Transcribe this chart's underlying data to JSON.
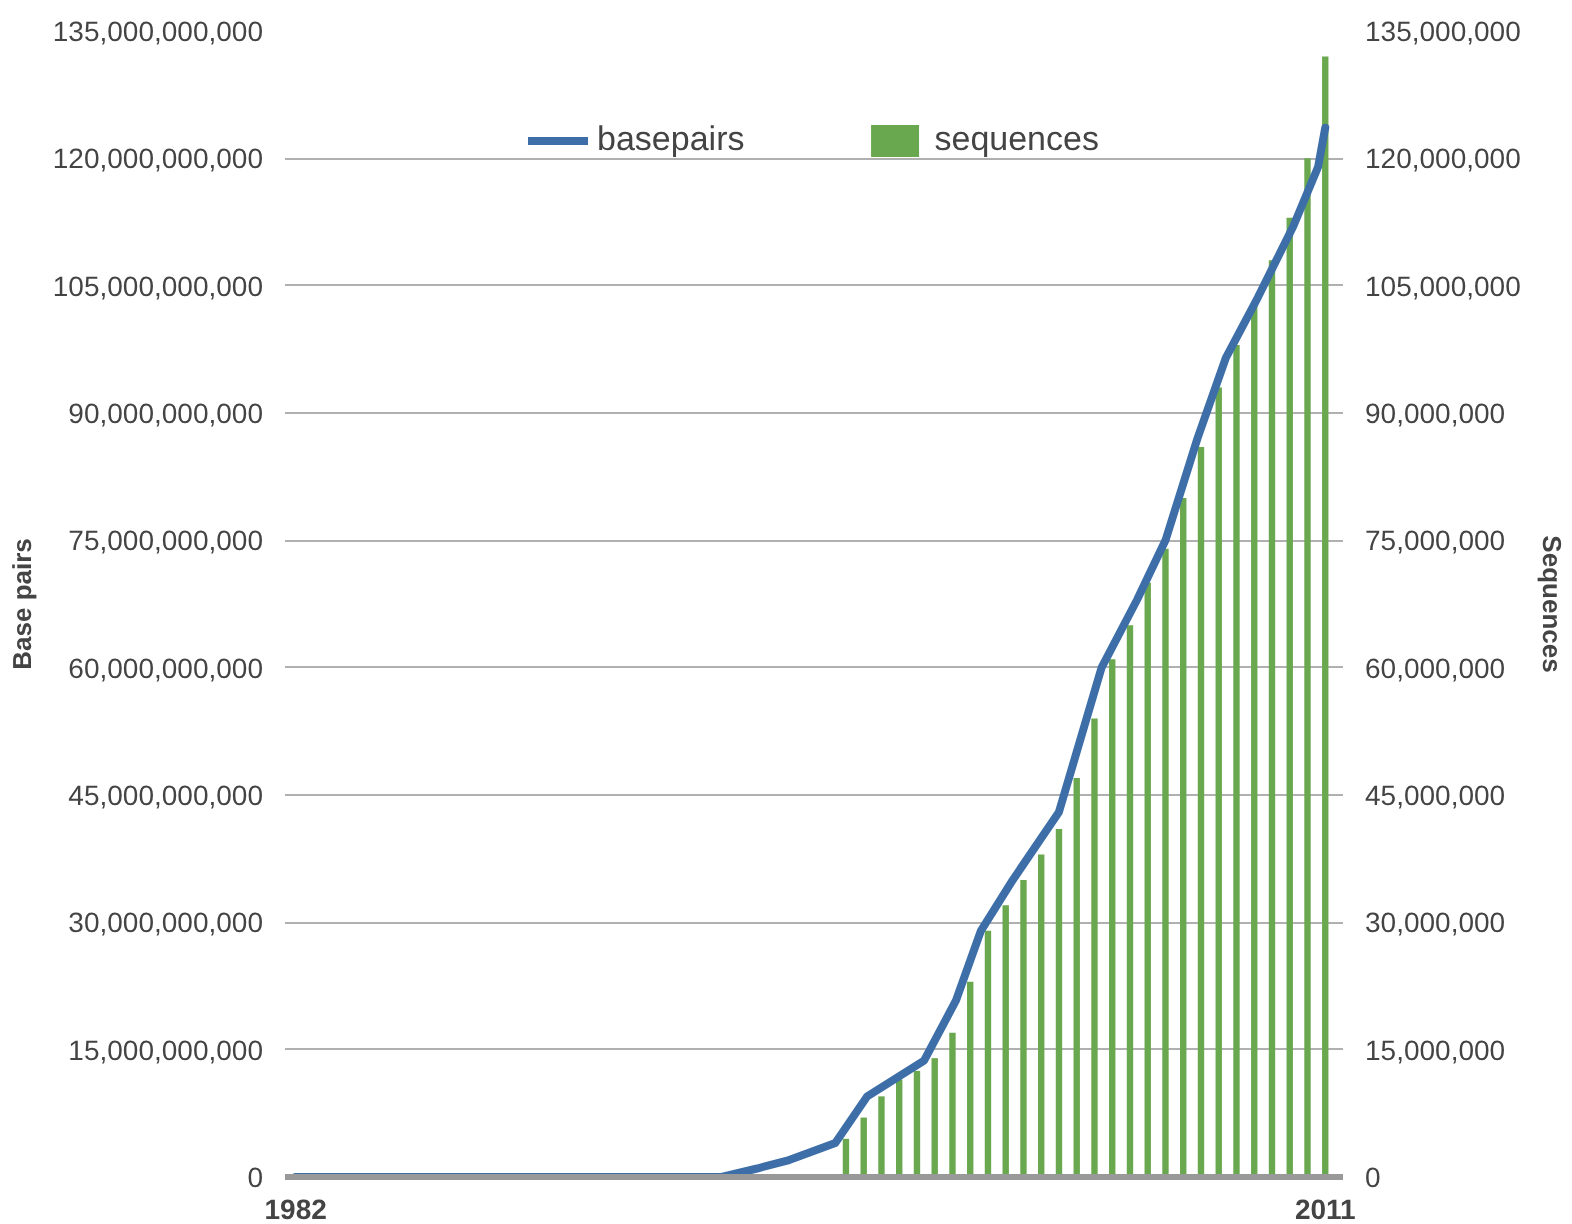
{
  "chart_data": {
    "type": "bar",
    "xlim": [
      1981.7,
      2011.5
    ],
    "xticks": [
      1982,
      2011
    ],
    "ylabel": "Base pairs",
    "y2label": "Sequences",
    "ylim": [
      0,
      135000000000
    ],
    "yticks": [
      {
        "value": 0,
        "label": "0"
      },
      {
        "value": 15000000000,
        "label": "15,000,000,000"
      },
      {
        "value": 30000000000,
        "label": "30,000,000,000"
      },
      {
        "value": 45000000000,
        "label": "45,000,000,000"
      },
      {
        "value": 60000000000,
        "label": "60,000,000,000"
      },
      {
        "value": 75000000000,
        "label": "75,000,000,000"
      },
      {
        "value": 90000000000,
        "label": "90,000,000,000"
      },
      {
        "value": 105000000000,
        "label": "105,000,000,000"
      },
      {
        "value": 120000000000,
        "label": "120,000,000,000"
      },
      {
        "value": 135000000000,
        "label": "135,000,000,000"
      }
    ],
    "y2lim": [
      0,
      135000000
    ],
    "y2ticks": [
      {
        "value": 0,
        "label": "0"
      },
      {
        "value": 15000000,
        "label": "15,000,000"
      },
      {
        "value": 30000000,
        "label": "30,000,000"
      },
      {
        "value": 45000000,
        "label": "45,000,000"
      },
      {
        "value": 60000000,
        "label": "60,000,000"
      },
      {
        "value": 75000000,
        "label": "75,000,000"
      },
      {
        "value": 90000000,
        "label": "90,000,000"
      },
      {
        "value": 105000000,
        "label": "105,000,000"
      },
      {
        "value": 120000000,
        "label": "120,000,000"
      },
      {
        "value": 135000000,
        "label": "135,000,000"
      }
    ],
    "grid": "y",
    "legend": "top",
    "series": [
      {
        "name": "basepairs",
        "type": "line",
        "color": "#3d6ea8",
        "x": [
          1982,
          1986,
          1990,
          1992,
          1994,
          1995,
          1995.9,
          1997.2,
          1998.1,
          1999.7,
          2000.6,
          2001.3,
          2002.2,
          2003.5,
          2004.7,
          2005.7,
          2006.5,
          2007.4,
          2008.2,
          2009.1,
          2010.1,
          2010.8,
          2011
        ],
        "values": [
          0,
          0,
          0,
          0,
          0,
          1000000000,
          2000000000,
          4000000000,
          9500000000,
          13700000000,
          20800000000,
          29000000000,
          35000000000,
          43000000000,
          60000000000,
          68000000000,
          75000000000,
          87000000000,
          96500000000,
          103600000000,
          112000000000,
          119000000000,
          123600000000
        ]
      },
      {
        "name": "sequences",
        "axis": "y2",
        "color": "#6aa84f",
        "x": [
          1997.5,
          1998,
          1998.5,
          1999,
          1999.5,
          2000,
          2000.5,
          2001,
          2001.5,
          2002,
          2002.5,
          2003,
          2003.5,
          2004,
          2004.5,
          2005,
          2005.5,
          2006,
          2006.5,
          2007,
          2007.5,
          2008,
          2008.5,
          2009,
          2009.5,
          2010,
          2010.5,
          2011
        ],
        "values": [
          4500000,
          7000000,
          9500000,
          11500000,
          12500000,
          14000000,
          17000000,
          23000000,
          29000000,
          32000000,
          35000000,
          38000000,
          41000000,
          47000000,
          54000000,
          61000000,
          65000000,
          70000000,
          74000000,
          80000000,
          86000000,
          93000000,
          98000000,
          103000000,
          108000000,
          113000000,
          120000000,
          132000000
        ]
      }
    ]
  }
}
